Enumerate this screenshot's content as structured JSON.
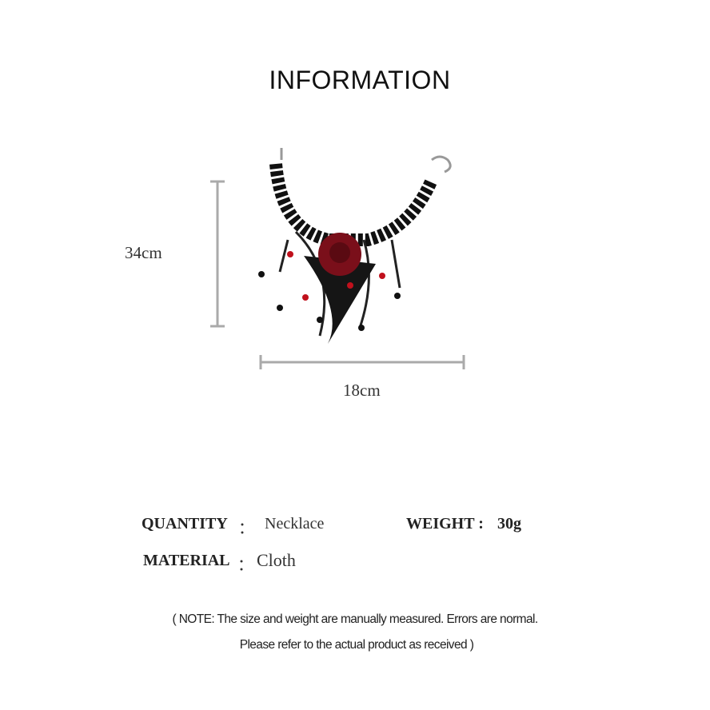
{
  "title": "INFORMATION",
  "dimensions": {
    "height": "34cm",
    "width": "18cm"
  },
  "specs": {
    "quantity_label": "QUANTITY",
    "quantity_sep": "：",
    "quantity_value": "Necklace",
    "weight_label": "WEIGHT :",
    "weight_value": "30g",
    "material_label": "MATERIAL",
    "material_sep": "：",
    "material_value": "Cloth"
  },
  "note": {
    "line1": "( NOTE: The size and weight are manually measured. Errors are normal.",
    "line2": "Please refer to the actual product as received )"
  },
  "colors": {
    "lace": "#111111",
    "rose": "#7a0f1a",
    "beads": "#c0101c",
    "ruler": "#aaaaaa"
  }
}
